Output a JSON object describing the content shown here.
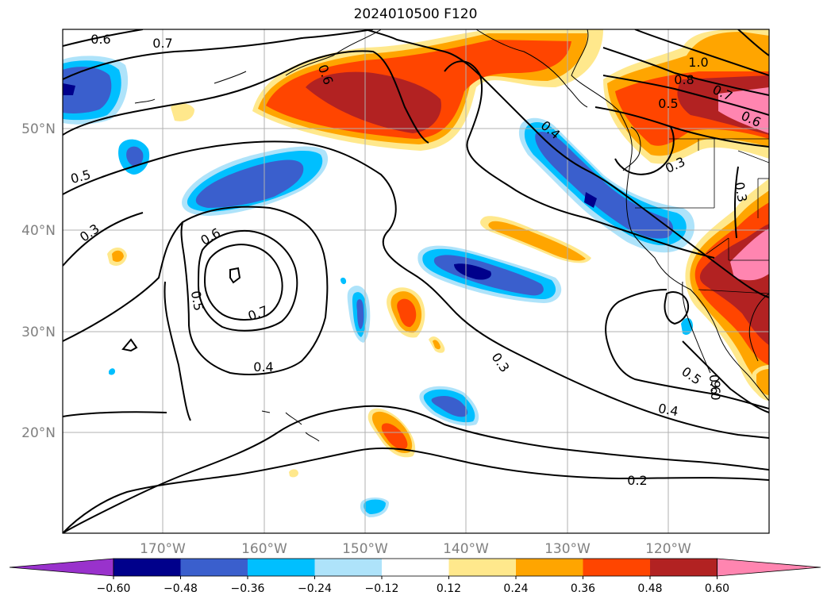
{
  "title": "2024010500 F120",
  "lat_labels": [
    "50°N",
    "40°N",
    "30°N",
    "20°N"
  ],
  "lon_labels": [
    "170°W",
    "160°W",
    "150°W",
    "140°W",
    "130°W",
    "120°W"
  ],
  "contour_labels": [
    "0.6",
    "0.7",
    "0.6",
    "0.5",
    "0.3",
    "0.6",
    "0.5",
    "0.7",
    "0.4",
    "0.3",
    "0.4",
    "0.5",
    "0.6",
    "0.4",
    "0.2",
    "1.0",
    "0.8",
    "0.7",
    "0.5",
    "0.6",
    "0.3",
    "0.3",
    "9.0"
  ],
  "colorbar": {
    "tick_labels": [
      "−0.60",
      "−0.48",
      "−0.36",
      "−0.24",
      "−0.12",
      "0.12",
      "0.24",
      "0.36",
      "0.48",
      "0.60"
    ],
    "colors": [
      "#9932cc",
      "#00008b",
      "#3a5fcd",
      "#00bfff",
      "#aee3fa",
      "#ffffff",
      "#ffe88c",
      "#ffa500",
      "#ff4500",
      "#b22222",
      "#ff85b0"
    ]
  }
}
